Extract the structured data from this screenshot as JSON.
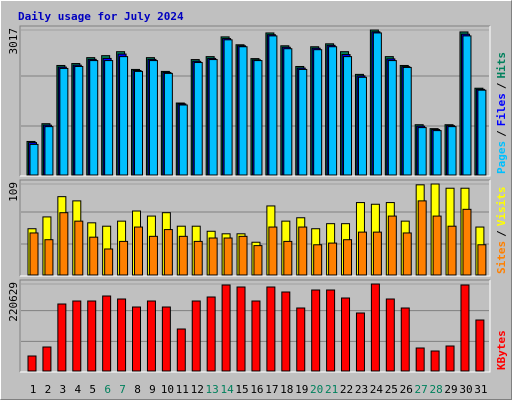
{
  "title": "Daily usage for July 2024",
  "title_color": "#0000c0",
  "legend_separator": "/",
  "weekend_days": [
    6,
    7,
    13,
    14,
    20,
    21,
    27,
    28
  ],
  "weekend_color": "#00805c",
  "chart_data": [
    {
      "type": "bar",
      "ylim": [
        0,
        3017
      ],
      "yticks": [
        3017
      ],
      "series": [
        {
          "name": "Hits",
          "color": "#00805c",
          "values": [
            714,
            1081,
            2284,
            2324,
            2446,
            2487,
            2569,
            2202,
            2446,
            2161,
            1508,
            2406,
            2467,
            2875,
            2712,
            2426,
            2956,
            2691,
            2263,
            2671,
            2732,
            2569,
            2100,
            3017,
            2467,
            2284,
            1060,
            979,
            1060,
            2977,
            1814
          ]
        },
        {
          "name": "Files",
          "color": "#0000ff",
          "values": [
            690,
            1050,
            2250,
            2290,
            2410,
            2430,
            2520,
            2180,
            2410,
            2140,
            1490,
            2370,
            2430,
            2840,
            2690,
            2400,
            2920,
            2660,
            2230,
            2640,
            2700,
            2510,
            2070,
            2980,
            2420,
            2260,
            1030,
            960,
            1040,
            2930,
            1790
          ]
        },
        {
          "name": "Pages",
          "color": "#00c0ff",
          "values": [
            653,
            1020,
            2223,
            2263,
            2385,
            2385,
            2467,
            2161,
            2385,
            2120,
            1467,
            2345,
            2406,
            2814,
            2671,
            2385,
            2895,
            2630,
            2202,
            2610,
            2671,
            2467,
            2039,
            2956,
            2385,
            2243,
            1000,
            938,
            1020,
            2895,
            1773
          ]
        }
      ]
    },
    {
      "type": "bar",
      "ylim": [
        0,
        109
      ],
      "yticks": [
        109
      ],
      "series": [
        {
          "name": "Visits",
          "color": "#ffff00",
          "values": [
            56,
            70,
            94,
            89,
            63,
            59,
            65,
            77,
            71,
            75,
            59,
            59,
            53,
            50,
            50,
            40,
            83,
            65,
            69,
            56,
            62,
            62,
            87,
            85,
            87,
            65,
            108,
            109,
            104,
            104,
            58
          ]
        },
        {
          "name": "Sites",
          "color": "#ff8000",
          "values": [
            51,
            43,
            75,
            65,
            46,
            32,
            41,
            58,
            47,
            55,
            47,
            41,
            45,
            45,
            47,
            36,
            58,
            41,
            58,
            37,
            39,
            43,
            52,
            52,
            71,
            51,
            89,
            71,
            59,
            79,
            37
          ]
        }
      ]
    },
    {
      "type": "bar",
      "ylim": [
        0,
        220629
      ],
      "yticks": [
        220629
      ],
      "categories": [
        "1",
        "2",
        "3",
        "4",
        "5",
        "6",
        "7",
        "8",
        "9",
        "10",
        "11",
        "12",
        "13",
        "14",
        "15",
        "16",
        "17",
        "18",
        "19",
        "20",
        "21",
        "22",
        "23",
        "24",
        "25",
        "26",
        "27",
        "28",
        "29",
        "30",
        "31"
      ],
      "series": [
        {
          "name": "KBytes",
          "color": "#ff0000",
          "values": [
            40112,
            62675,
            170476,
            177997,
            177997,
            190532,
            183011,
            162955,
            177997,
            162955,
            107801,
            177997,
            188025,
            218109,
            213095,
            177997,
            213095,
            200560,
            160448,
            205574,
            205574,
            185518,
            147913,
            220629,
            183011,
            160448,
            60168,
            52647,
            65182,
            218109,
            130364
          ]
        }
      ]
    }
  ]
}
